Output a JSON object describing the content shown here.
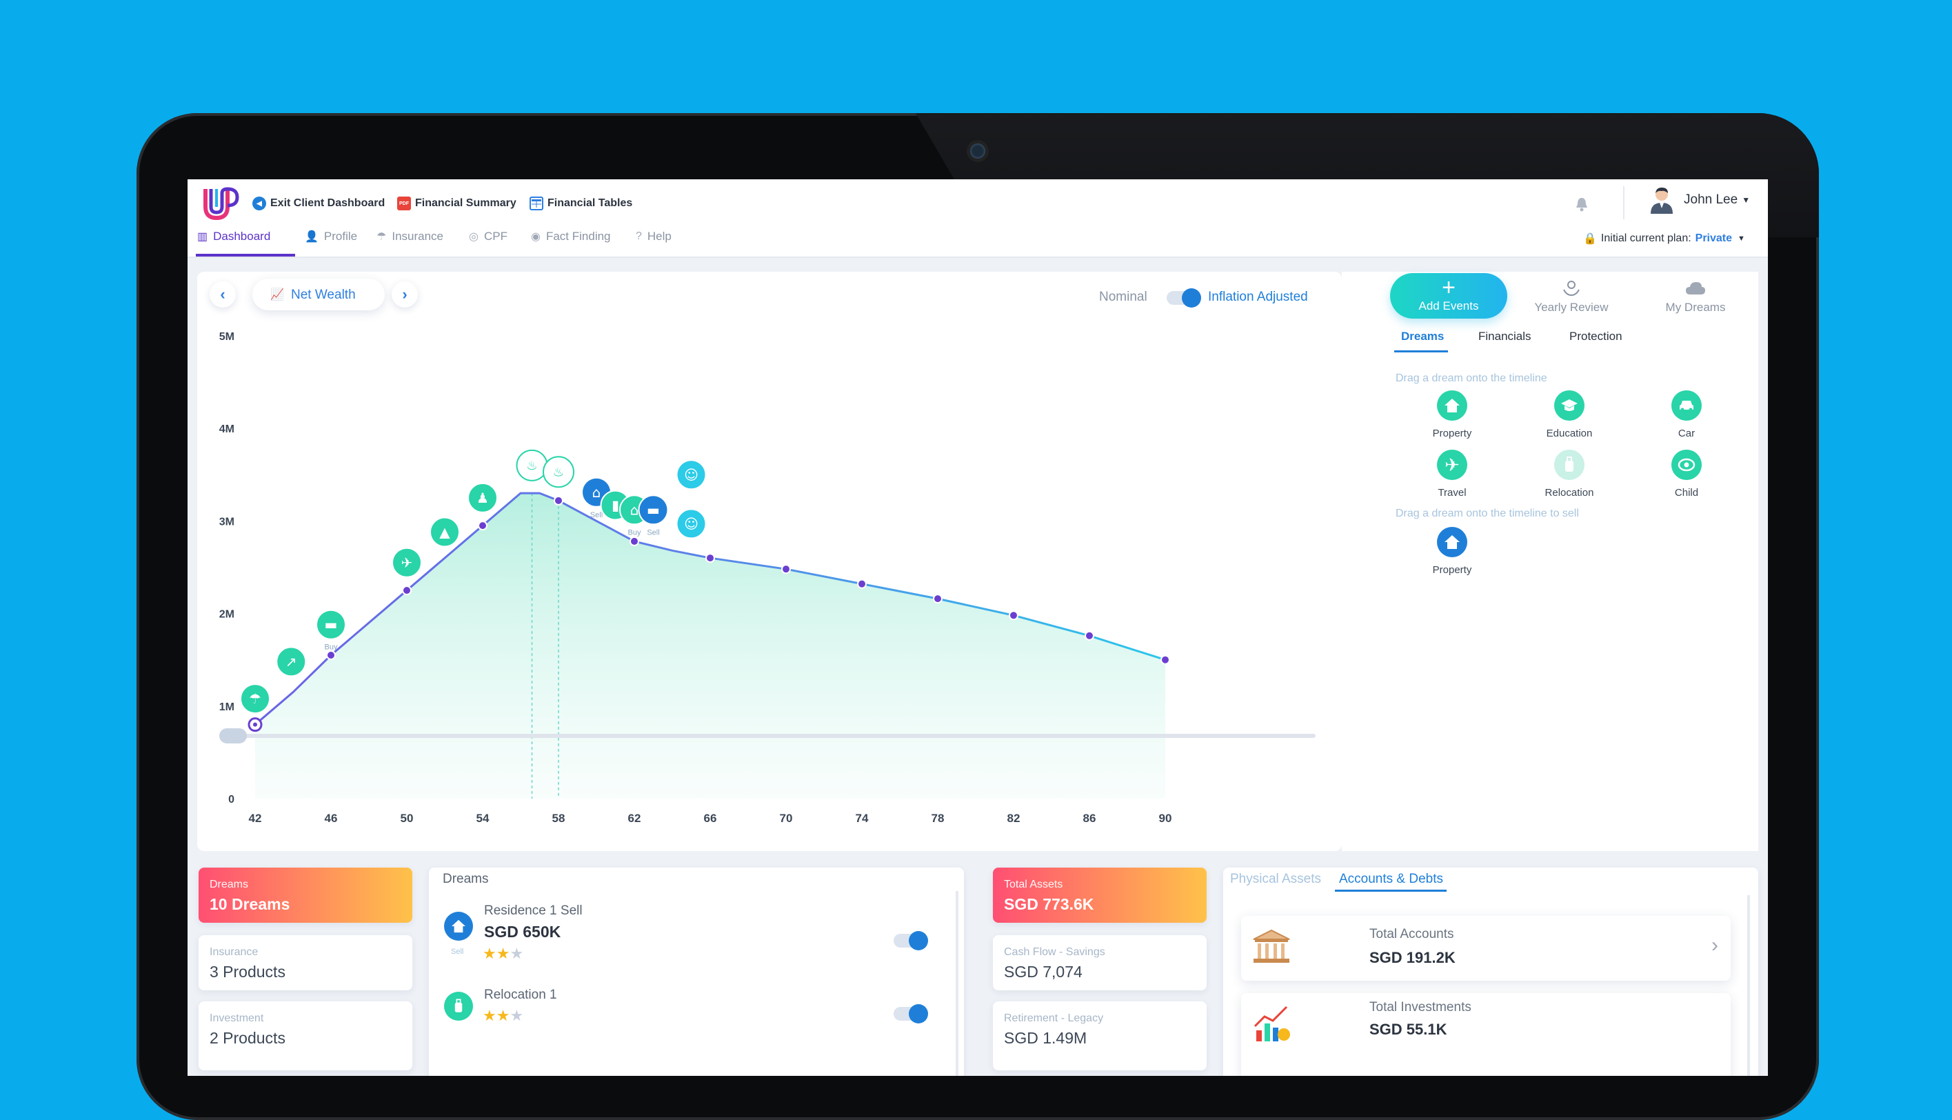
{
  "header": {
    "links": [
      {
        "label": "Exit Client Dashboard",
        "icon": "back-circle-icon"
      },
      {
        "label": "Financial Summary",
        "icon": "pdf-icon"
      },
      {
        "label": "Financial Tables",
        "icon": "table-icon"
      }
    ],
    "user_name": "John Lee",
    "plan_label": "Initial current plan:",
    "plan_value": "Private"
  },
  "nav": [
    {
      "label": "Dashboard",
      "icon": "dashboard-icon",
      "active": true
    },
    {
      "label": "Profile",
      "icon": "person-icon"
    },
    {
      "label": "Insurance",
      "icon": "umbrella-icon"
    },
    {
      "label": "CPF",
      "icon": "piggy-icon"
    },
    {
      "label": "Fact Finding",
      "icon": "search-icon"
    },
    {
      "label": "Help",
      "icon": "help-icon"
    }
  ],
  "chart_header": {
    "selector": "Net Wealth",
    "toggle_left": "Nominal",
    "toggle_right": "Inflation Adjusted"
  },
  "chart_data": {
    "type": "area",
    "x": [
      42,
      44,
      46,
      48,
      50,
      52,
      54,
      56,
      57,
      58,
      60,
      62,
      64,
      66,
      70,
      74,
      78,
      82,
      86,
      90
    ],
    "values": [
      0.8,
      1.15,
      1.55,
      1.9,
      2.25,
      2.6,
      2.95,
      3.3,
      3.3,
      3.22,
      3.0,
      2.78,
      2.68,
      2.6,
      2.48,
      2.32,
      2.16,
      1.98,
      1.76,
      1.5
    ],
    "ylim": [
      0,
      5
    ],
    "y_ticks": [
      "0",
      "1M",
      "2M",
      "3M",
      "4M",
      "5M"
    ],
    "x_ticks": [
      "42",
      "46",
      "50",
      "54",
      "58",
      "62",
      "66",
      "70",
      "74",
      "78",
      "82",
      "86",
      "90"
    ],
    "marker_x": [
      42,
      46,
      50,
      54,
      58,
      62,
      66,
      70,
      74,
      78,
      82,
      86,
      90
    ],
    "event_labels": {
      "buy1": "Buy",
      "sell1": "Sell",
      "buy2": "Buy",
      "sell2": "Sell"
    }
  },
  "side": {
    "add_events": "Add Events",
    "yearly_review": "Yearly Review",
    "my_dreams": "My Dreams",
    "subtabs": [
      "Dreams",
      "Financials",
      "Protection"
    ],
    "hint_buy": "Drag a dream onto the timeline",
    "hint_sell": "Drag a dream onto the timeline to sell",
    "dreams": [
      "Property",
      "Education",
      "Car",
      "Travel",
      "Relocation",
      "Child"
    ],
    "sell_dreams": [
      "Property"
    ]
  },
  "summary": {
    "dreams": {
      "label": "Dreams",
      "value": "10 Dreams"
    },
    "insurance": {
      "label": "Insurance",
      "value": "3 Products"
    },
    "investment": {
      "label": "Investment",
      "value": "2 Products"
    }
  },
  "dreams_panel": {
    "title": "Dreams",
    "items": [
      {
        "name": "Residence 1 Sell",
        "amount": "SGD 650K",
        "tag": "Sell",
        "stars": 2
      },
      {
        "name": "Relocation 1",
        "amount": "",
        "tag": "",
        "stars": 2
      }
    ]
  },
  "assets": {
    "total": {
      "label": "Total Assets",
      "value": "SGD 773.6K"
    },
    "cashflow": {
      "label": "Cash Flow - Savings",
      "value": "SGD 7,074"
    },
    "retirement": {
      "label": "Retirement - Legacy",
      "value": "SGD 1.49M"
    }
  },
  "accounts": {
    "tabs": [
      "Physical Assets",
      "Accounts & Debts"
    ],
    "items": [
      {
        "title": "Total Accounts",
        "value": "SGD 191.2K"
      },
      {
        "title": "Total Investments",
        "value": "SGD 55.1K"
      }
    ]
  },
  "colors": {
    "brand": "#5b32c9",
    "accent": "#1f7fd8",
    "teal": "#28d4a8",
    "bg": "#08acec"
  }
}
